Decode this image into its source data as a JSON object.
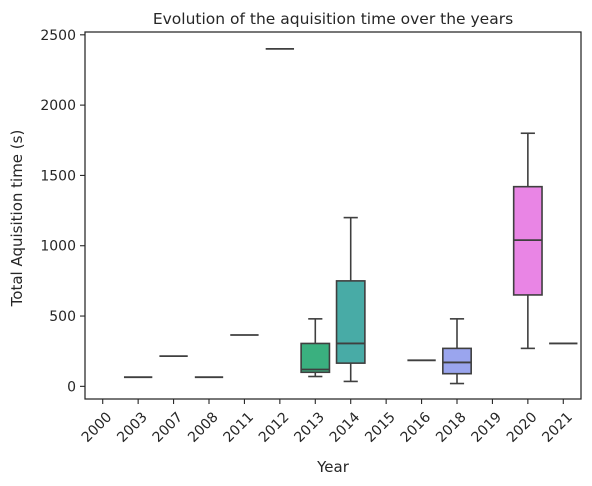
{
  "chart_data": {
    "type": "box",
    "title": "Evolution of the aquisition time over the years",
    "xlabel": "Year",
    "ylabel": "Total Aquisition time (s)",
    "ylim": [
      -90,
      2520
    ],
    "yticks": [
      0,
      500,
      1000,
      1500,
      2000,
      2500
    ],
    "grid": false,
    "categories": [
      "2000",
      "2003",
      "2007",
      "2008",
      "2011",
      "2012",
      "2013",
      "2014",
      "2015",
      "2016",
      "2018",
      "2019",
      "2020",
      "2021"
    ],
    "boxes": [
      {
        "year": "2000",
        "empty": true
      },
      {
        "year": "2003",
        "whislo": 65,
        "q1": 65,
        "med": 65,
        "q3": 65,
        "whishi": 65,
        "color": "#3274a1"
      },
      {
        "year": "2007",
        "whislo": 215,
        "q1": 215,
        "med": 215,
        "q3": 215,
        "whishi": 215,
        "color": "#e1812c"
      },
      {
        "year": "2008",
        "whislo": 65,
        "q1": 65,
        "med": 65,
        "q3": 65,
        "whishi": 65,
        "color": "#3a923a"
      },
      {
        "year": "2011",
        "whislo": 365,
        "q1": 365,
        "med": 365,
        "q3": 365,
        "whishi": 365,
        "color": "#c03d3e"
      },
      {
        "year": "2012",
        "whislo": 2400,
        "q1": 2400,
        "med": 2400,
        "q3": 2400,
        "whishi": 2400,
        "color": "#9372b2"
      },
      {
        "year": "2013",
        "whislo": 70,
        "q1": 100,
        "med": 120,
        "q3": 305,
        "whishi": 480,
        "color": "#3ab07f"
      },
      {
        "year": "2014",
        "whislo": 35,
        "q1": 165,
        "med": 305,
        "q3": 750,
        "whishi": 1200,
        "color": "#48aba6"
      },
      {
        "year": "2015",
        "empty": true
      },
      {
        "year": "2016",
        "whislo": 185,
        "q1": 185,
        "med": 185,
        "q3": 185,
        "whishi": 185,
        "color": "#8c8c8c"
      },
      {
        "year": "2018",
        "whislo": 20,
        "q1": 90,
        "med": 170,
        "q3": 270,
        "whishi": 480,
        "color": "#9aa5ee"
      },
      {
        "year": "2019",
        "empty": true
      },
      {
        "year": "2020",
        "whislo": 270,
        "q1": 650,
        "med": 1040,
        "q3": 1420,
        "whishi": 1800,
        "color": "#e985e5"
      },
      {
        "year": "2021",
        "whislo": 305,
        "q1": 305,
        "med": 305,
        "q3": 305,
        "whishi": 305,
        "color": "#b78872"
      }
    ]
  }
}
